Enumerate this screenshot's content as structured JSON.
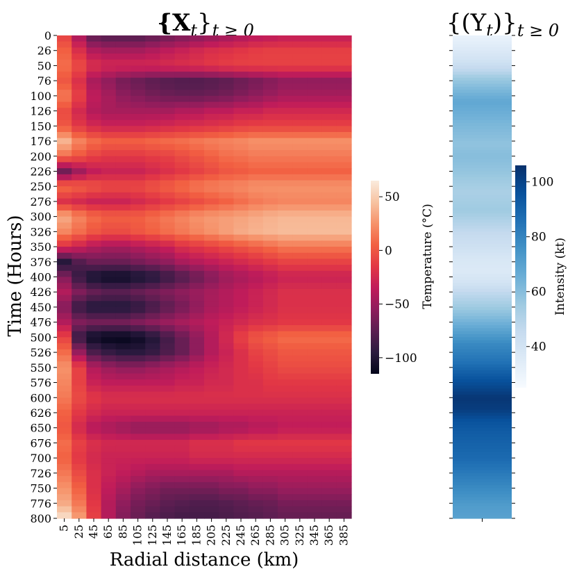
{
  "chart_data": [
    {
      "type": "heatmap",
      "title_main": "{X",
      "title_sub": "t",
      "title_close": "}",
      "title_range": "t ≥ 0",
      "xlabel": "Radial distance (km)",
      "ylabel": "Time (Hours)",
      "x_ticks": [
        "5",
        "25",
        "45",
        "65",
        "85",
        "105",
        "125",
        "145",
        "165",
        "185",
        "205",
        "225",
        "245",
        "265",
        "285",
        "305",
        "325",
        "345",
        "365",
        "385"
      ],
      "y_ticks": [
        "0",
        "26",
        "50",
        "76",
        "100",
        "126",
        "150",
        "176",
        "200",
        "226",
        "250",
        "276",
        "300",
        "326",
        "350",
        "376",
        "400",
        "426",
        "450",
        "476",
        "500",
        "526",
        "550",
        "576",
        "600",
        "626",
        "650",
        "676",
        "700",
        "726",
        "750",
        "776",
        "800"
      ],
      "x_range_km": [
        5,
        400
      ],
      "y_range_hours": [
        0,
        800
      ],
      "colorbar": {
        "label": "Temperature (°C)",
        "ticks": [
          "50",
          "0",
          "−50",
          "−100"
        ],
        "tick_values": [
          50,
          0,
          -50,
          -100
        ],
        "range": [
          -115,
          65
        ],
        "colors": [
          "#03051a",
          "#2b1a3f",
          "#5b1e51",
          "#8f1d5c",
          "#c01c5a",
          "#e23745",
          "#f26042",
          "#f6926a",
          "#f7c3a2",
          "#faebdd"
        ]
      },
      "rows": [
        {
          "h": 0,
          "v": [
            -10,
            -45,
            -75,
            -80,
            -80,
            -80,
            -75,
            -70,
            -65,
            -60,
            -55,
            -50,
            -45,
            -40,
            -38,
            -35,
            -35,
            -35,
            -35,
            -35
          ]
        },
        {
          "h": 26,
          "v": [
            5,
            -20,
            -40,
            -45,
            -45,
            -45,
            -40,
            -35,
            -30,
            -25,
            -20,
            -18,
            -15,
            -12,
            -10,
            -10,
            -10,
            -10,
            -10,
            -10
          ]
        },
        {
          "h": 50,
          "v": [
            10,
            -5,
            -20,
            -25,
            -25,
            -25,
            -25,
            -22,
            -20,
            -18,
            -15,
            -12,
            -10,
            -10,
            -10,
            -10,
            -10,
            -10,
            -10,
            -10
          ]
        },
        {
          "h": 76,
          "v": [
            0,
            -20,
            -45,
            -55,
            -65,
            -70,
            -75,
            -78,
            -80,
            -80,
            -78,
            -75,
            -70,
            -65,
            -60,
            -55,
            -55,
            -55,
            -55,
            -55
          ]
        },
        {
          "h": 100,
          "v": [
            15,
            -10,
            -35,
            -45,
            -55,
            -60,
            -65,
            -68,
            -70,
            -70,
            -68,
            -65,
            -60,
            -55,
            -50,
            -45,
            -45,
            -45,
            -45,
            -45
          ]
        },
        {
          "h": 126,
          "v": [
            -5,
            -25,
            -40,
            -45,
            -45,
            -45,
            -45,
            -45,
            -40,
            -40,
            -35,
            -35,
            -30,
            -30,
            -25,
            -25,
            -25,
            -25,
            -25,
            -25
          ]
        },
        {
          "h": 150,
          "v": [
            0,
            -15,
            -25,
            -30,
            -30,
            -30,
            -28,
            -25,
            -22,
            -20,
            -18,
            -15,
            -12,
            -10,
            -10,
            -10,
            -10,
            -10,
            -10,
            -10
          ]
        },
        {
          "h": 176,
          "v": [
            40,
            20,
            10,
            5,
            5,
            5,
            8,
            10,
            12,
            15,
            18,
            20,
            22,
            25,
            25,
            25,
            25,
            25,
            25,
            25
          ]
        },
        {
          "h": 200,
          "v": [
            10,
            0,
            -10,
            -15,
            -15,
            -15,
            -12,
            -10,
            -5,
            0,
            5,
            10,
            12,
            15,
            15,
            15,
            15,
            15,
            15,
            15
          ]
        },
        {
          "h": 226,
          "v": [
            -70,
            -50,
            -35,
            -30,
            -30,
            -30,
            -25,
            -20,
            -15,
            -10,
            -5,
            0,
            2,
            5,
            5,
            5,
            5,
            5,
            5,
            5
          ]
        },
        {
          "h": 250,
          "v": [
            10,
            5,
            0,
            -5,
            -5,
            -5,
            0,
            5,
            10,
            15,
            18,
            20,
            22,
            25,
            25,
            25,
            25,
            25,
            25,
            25
          ]
        },
        {
          "h": 276,
          "v": [
            -20,
            -25,
            -30,
            -30,
            -30,
            -25,
            -20,
            -15,
            -10,
            -5,
            0,
            5,
            10,
            15,
            18,
            20,
            20,
            20,
            20,
            20
          ]
        },
        {
          "h": 300,
          "v": [
            35,
            20,
            10,
            5,
            5,
            5,
            10,
            15,
            20,
            25,
            28,
            30,
            32,
            35,
            38,
            40,
            40,
            40,
            40,
            40
          ]
        },
        {
          "h": 326,
          "v": [
            20,
            10,
            0,
            -5,
            -5,
            0,
            5,
            10,
            15,
            20,
            25,
            30,
            35,
            38,
            40,
            42,
            42,
            42,
            42,
            42
          ]
        },
        {
          "h": 350,
          "v": [
            -20,
            -30,
            -40,
            -45,
            -45,
            -40,
            -35,
            -30,
            -20,
            -15,
            -10,
            -5,
            0,
            5,
            10,
            15,
            15,
            15,
            15,
            15
          ]
        },
        {
          "h": 376,
          "v": [
            -100,
            -80,
            -70,
            -70,
            -70,
            -65,
            -60,
            -55,
            -45,
            -40,
            -35,
            -30,
            -25,
            -20,
            -15,
            -10,
            -10,
            -10,
            -10,
            -10
          ]
        },
        {
          "h": 400,
          "v": [
            -60,
            -90,
            -105,
            -110,
            -110,
            -105,
            -100,
            -90,
            -80,
            -70,
            -60,
            -50,
            -45,
            -40,
            -35,
            -30,
            -30,
            -30,
            -30,
            -30
          ]
        },
        {
          "h": 426,
          "v": [
            -40,
            -60,
            -70,
            -75,
            -75,
            -70,
            -65,
            -60,
            -55,
            -50,
            -45,
            -40,
            -35,
            -30,
            -25,
            -20,
            -20,
            -20,
            -20,
            -20
          ]
        },
        {
          "h": 450,
          "v": [
            -60,
            -90,
            -100,
            -100,
            -100,
            -95,
            -85,
            -75,
            -65,
            -55,
            -45,
            -40,
            -35,
            -30,
            -25,
            -20,
            -20,
            -20,
            -20,
            -20
          ]
        },
        {
          "h": 476,
          "v": [
            -40,
            -60,
            -65,
            -65,
            -65,
            -60,
            -55,
            -50,
            -45,
            -40,
            -35,
            -30,
            -25,
            -20,
            -18,
            -15,
            -15,
            -15,
            -15,
            -15
          ]
        },
        {
          "h": 500,
          "v": [
            -10,
            -90,
            -110,
            -115,
            -115,
            -110,
            -100,
            -85,
            -70,
            -55,
            -40,
            -25,
            -10,
            0,
            5,
            10,
            10,
            10,
            10,
            10
          ]
        },
        {
          "h": 526,
          "v": [
            10,
            -50,
            -80,
            -90,
            -95,
            -95,
            -90,
            -80,
            -70,
            -55,
            -40,
            -30,
            -20,
            -10,
            -5,
            0,
            0,
            0,
            0,
            0
          ]
        },
        {
          "h": 550,
          "v": [
            25,
            -10,
            -40,
            -50,
            -55,
            -55,
            -50,
            -45,
            -40,
            -35,
            -30,
            -25,
            -20,
            -15,
            -10,
            -5,
            -5,
            -5,
            -5,
            -5
          ]
        },
        {
          "h": 576,
          "v": [
            20,
            -10,
            -30,
            -35,
            -35,
            -35,
            -35,
            -35,
            -30,
            -30,
            -25,
            -25,
            -20,
            -20,
            -15,
            -15,
            -15,
            -15,
            -15,
            -15
          ]
        },
        {
          "h": 600,
          "v": [
            15,
            -5,
            -15,
            -20,
            -20,
            -20,
            -20,
            -20,
            -20,
            -20,
            -20,
            -20,
            -20,
            -20,
            -20,
            -20,
            -20,
            -20,
            -20,
            -20
          ]
        },
        {
          "h": 626,
          "v": [
            5,
            -15,
            -25,
            -30,
            -30,
            -30,
            -30,
            -30,
            -30,
            -30,
            -30,
            -30,
            -30,
            -30,
            -30,
            -30,
            -30,
            -30,
            -30,
            -30
          ]
        },
        {
          "h": 650,
          "v": [
            0,
            -25,
            -40,
            -45,
            -50,
            -55,
            -55,
            -55,
            -55,
            -50,
            -50,
            -45,
            -45,
            -40,
            -40,
            -35,
            -35,
            -35,
            -35,
            -35
          ]
        },
        {
          "h": 676,
          "v": [
            10,
            -10,
            -20,
            -25,
            -25,
            -25,
            -25,
            -25,
            -25,
            -20,
            -20,
            -20,
            -15,
            -15,
            -15,
            -15,
            -15,
            -15,
            -15,
            -15
          ]
        },
        {
          "h": 700,
          "v": [
            5,
            -15,
            -25,
            -30,
            -30,
            -30,
            -30,
            -30,
            -30,
            -25,
            -25,
            -25,
            -25,
            -25,
            -25,
            -25,
            -25,
            -25,
            -25,
            -25
          ]
        },
        {
          "h": 726,
          "v": [
            15,
            -5,
            -20,
            -30,
            -35,
            -40,
            -45,
            -45,
            -45,
            -45,
            -45,
            -45,
            -40,
            -40,
            -40,
            -40,
            -40,
            -40,
            -40,
            -40
          ]
        },
        {
          "h": 750,
          "v": [
            25,
            5,
            -20,
            -35,
            -45,
            -55,
            -60,
            -65,
            -65,
            -65,
            -65,
            -60,
            -60,
            -55,
            -55,
            -50,
            -50,
            -50,
            -50,
            -50
          ]
        },
        {
          "h": 776,
          "v": [
            35,
            15,
            -15,
            -40,
            -55,
            -65,
            -70,
            -75,
            -78,
            -80,
            -80,
            -78,
            -75,
            -72,
            -70,
            -65,
            -65,
            -65,
            -65,
            -65
          ]
        },
        {
          "h": 800,
          "v": [
            60,
            30,
            -10,
            -40,
            -60,
            -70,
            -78,
            -82,
            -85,
            -85,
            -85,
            -82,
            -80,
            -78,
            -75,
            -72,
            -72,
            -72,
            -72,
            -72
          ]
        }
      ]
    },
    {
      "type": "heatmap",
      "title_main": "{(Y",
      "title_sub": "t",
      "title_close": ")}",
      "title_range": "t ≥ 0",
      "colorbar": {
        "label": "Intensity (kt)",
        "ticks": [
          "100",
          "80",
          "60",
          "40"
        ],
        "tick_values": [
          100,
          80,
          60,
          40
        ],
        "range": [
          25,
          106
        ],
        "colors": [
          "#f7fbff",
          "#deebf7",
          "#c6dbef",
          "#9ecae1",
          "#6baed6",
          "#4292c6",
          "#2171b5",
          "#08519c",
          "#08306b"
        ]
      },
      "rows": [
        {
          "h": 0,
          "v": 30
        },
        {
          "h": 20,
          "v": 35
        },
        {
          "h": 40,
          "v": 40
        },
        {
          "h": 60,
          "v": 48
        },
        {
          "h": 70,
          "v": 55
        },
        {
          "h": 90,
          "v": 62
        },
        {
          "h": 110,
          "v": 68
        },
        {
          "h": 130,
          "v": 65
        },
        {
          "h": 150,
          "v": 62
        },
        {
          "h": 180,
          "v": 58
        },
        {
          "h": 200,
          "v": 60
        },
        {
          "h": 220,
          "v": 58
        },
        {
          "h": 240,
          "v": 55
        },
        {
          "h": 260,
          "v": 52
        },
        {
          "h": 290,
          "v": 55
        },
        {
          "h": 310,
          "v": 50
        },
        {
          "h": 330,
          "v": 45
        },
        {
          "h": 350,
          "v": 42
        },
        {
          "h": 370,
          "v": 38
        },
        {
          "h": 390,
          "v": 36
        },
        {
          "h": 410,
          "v": 40
        },
        {
          "h": 430,
          "v": 48
        },
        {
          "h": 450,
          "v": 55
        },
        {
          "h": 470,
          "v": 62
        },
        {
          "h": 490,
          "v": 70
        },
        {
          "h": 510,
          "v": 78
        },
        {
          "h": 540,
          "v": 85
        },
        {
          "h": 560,
          "v": 92
        },
        {
          "h": 580,
          "v": 98
        },
        {
          "h": 600,
          "v": 104
        },
        {
          "h": 620,
          "v": 102
        },
        {
          "h": 640,
          "v": 95
        },
        {
          "h": 660,
          "v": 92
        },
        {
          "h": 680,
          "v": 90
        },
        {
          "h": 700,
          "v": 88
        },
        {
          "h": 720,
          "v": 84
        },
        {
          "h": 740,
          "v": 80
        },
        {
          "h": 760,
          "v": 76
        },
        {
          "h": 780,
          "v": 72
        },
        {
          "h": 800,
          "v": 70
        }
      ]
    }
  ]
}
